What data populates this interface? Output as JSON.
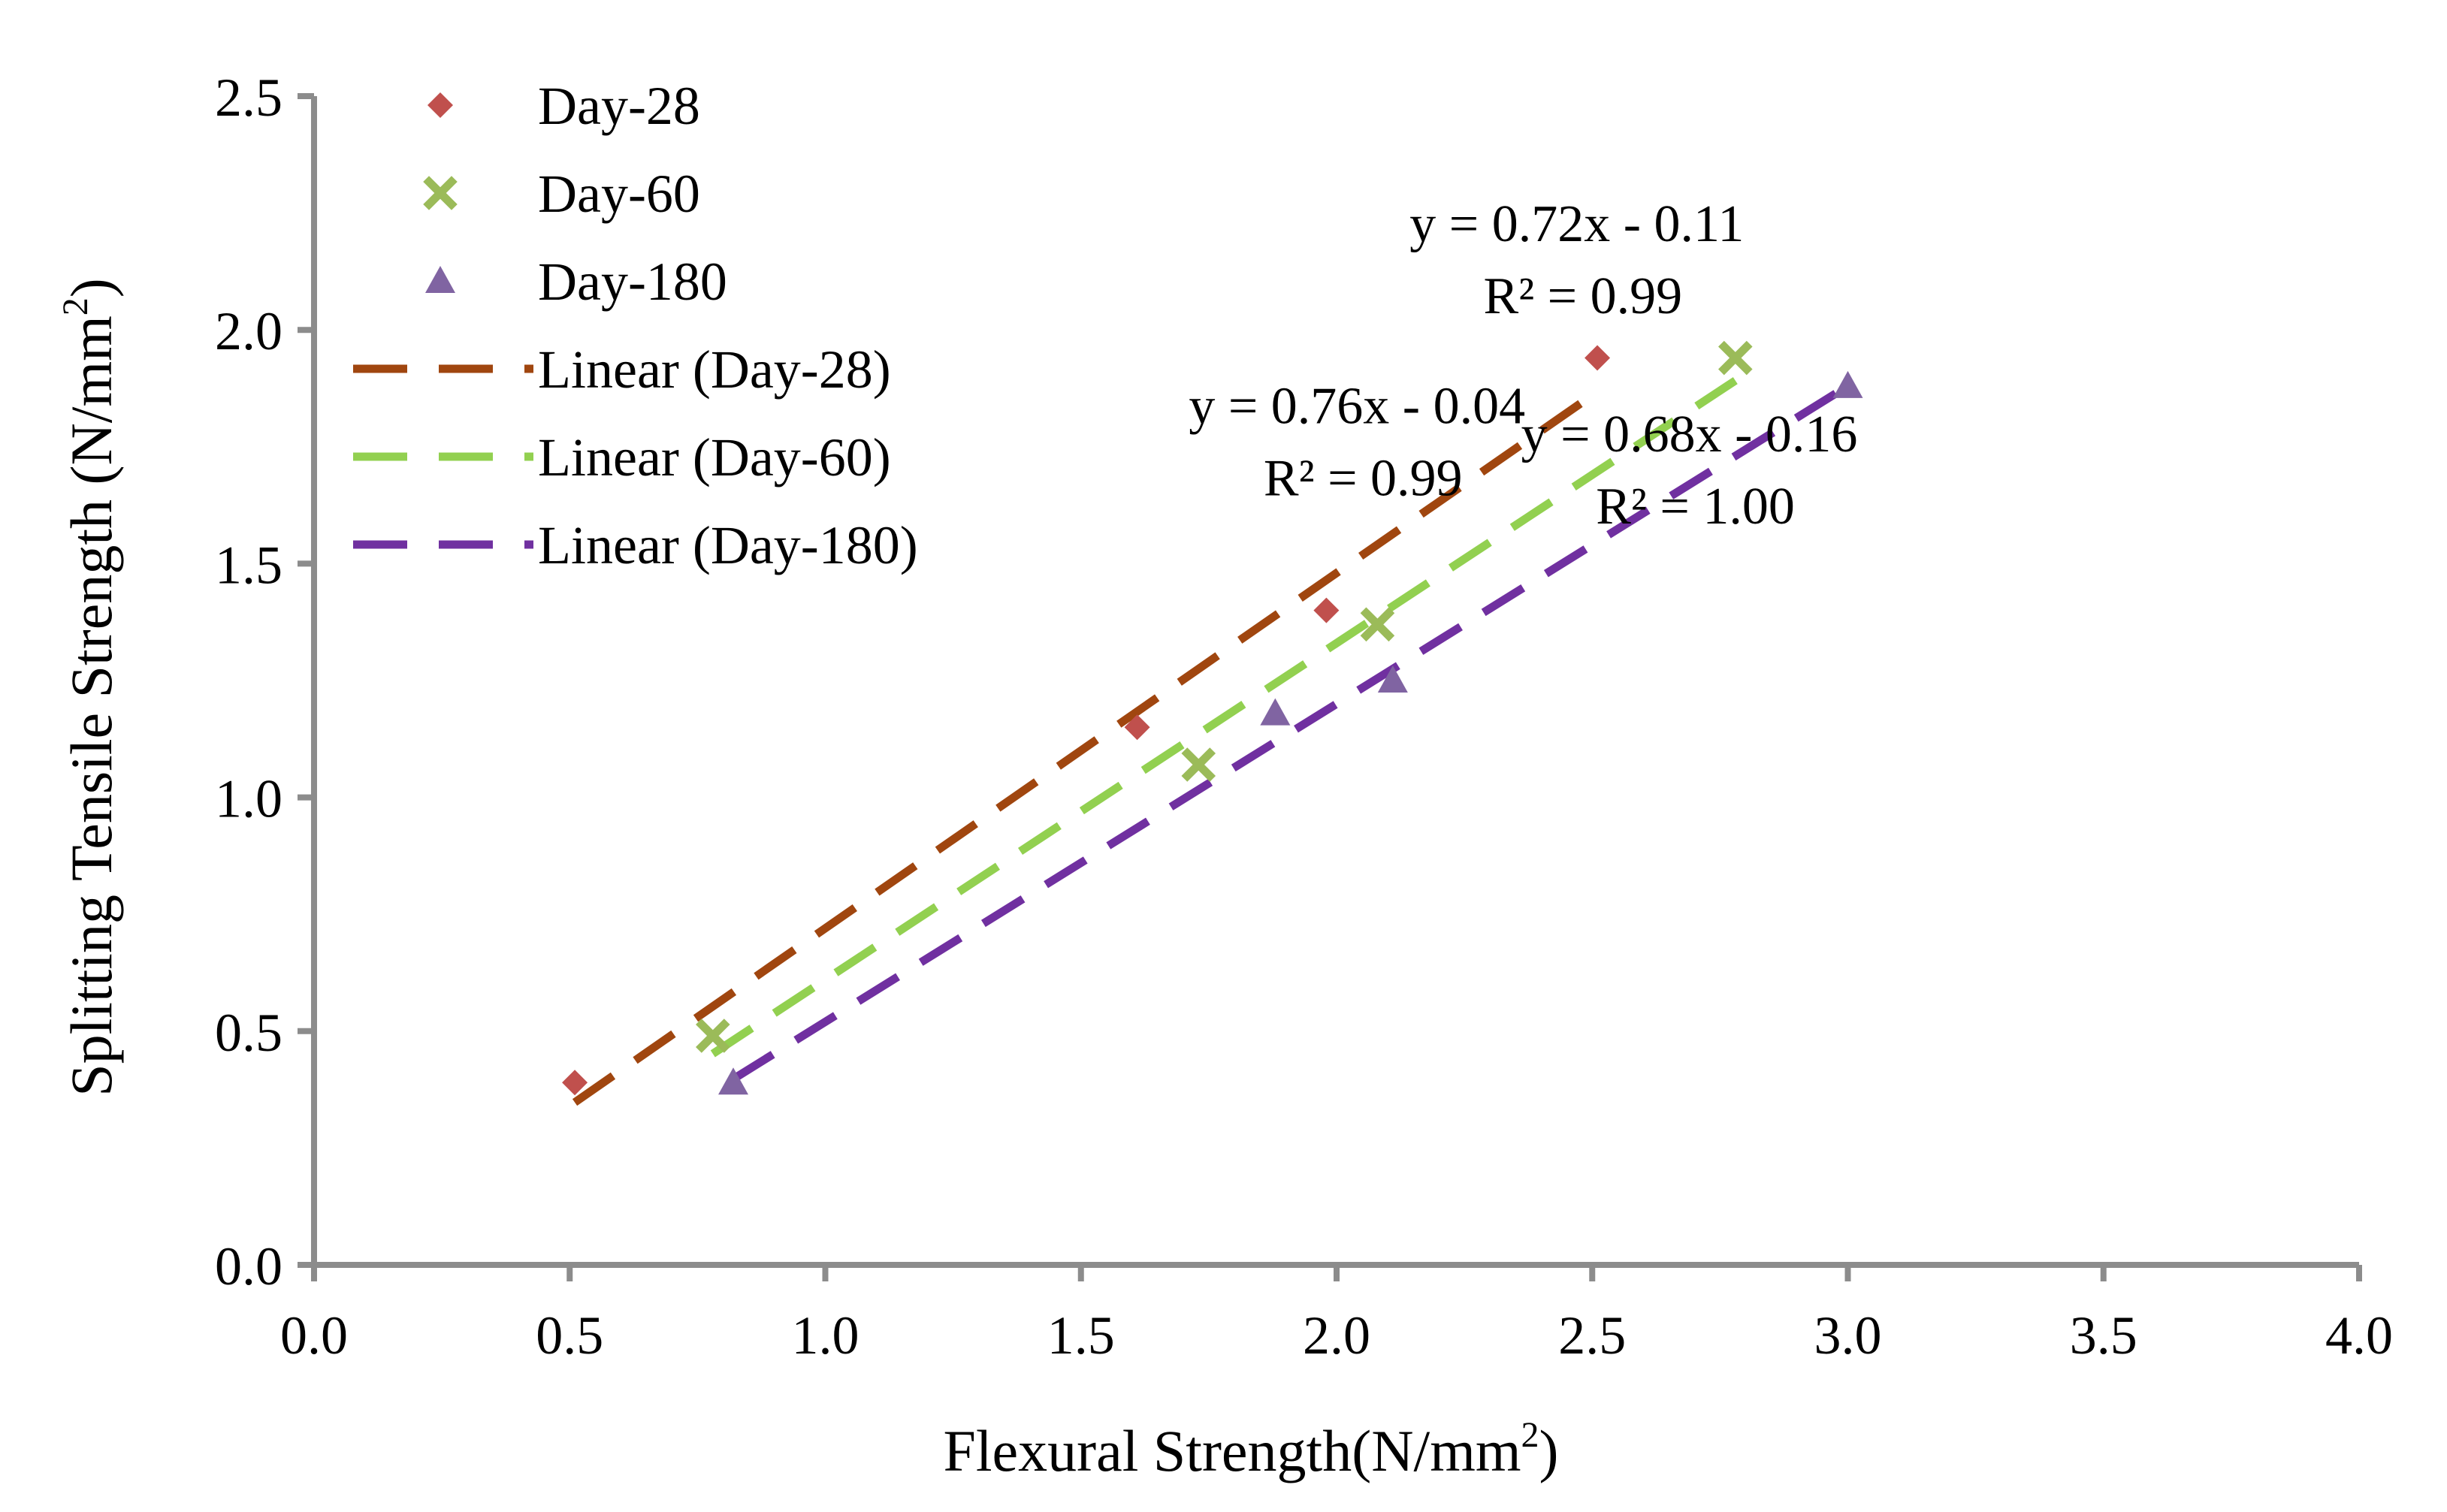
{
  "chart_data": {
    "type": "scatter",
    "title": "",
    "xlabel": "Flexural Strength(N/mm",
    "xlabel_sup": "2",
    "xlabel_tail": ")",
    "ylabel": "Splitting Tensile Strength (N/mm",
    "ylabel_sup": "2",
    "ylabel_tail": ")",
    "xlim": [
      0.0,
      4.0
    ],
    "ylim": [
      0.0,
      2.5
    ],
    "x_ticks": [
      "0.0",
      "0.5",
      "1.0",
      "1.5",
      "2.0",
      "2.5",
      "3.0",
      "3.5",
      "4.0"
    ],
    "y_ticks": [
      "0.0",
      "0.5",
      "1.0",
      "1.5",
      "2.0",
      "2.5"
    ],
    "legend_position": "top-left",
    "series": [
      {
        "name": "Day-28",
        "marker": "diamond",
        "color": "#c0504d",
        "points": [
          [
            0.51,
            0.39
          ],
          [
            1.61,
            1.15
          ],
          [
            1.98,
            1.4
          ],
          [
            2.51,
            1.94
          ]
        ],
        "trend": {
          "name": "Linear (Day-28)",
          "color": "#a0460f",
          "slope": 0.76,
          "intercept": -0.04,
          "x_range": [
            0.51,
            2.51
          ],
          "equation": "y = 0.76x  - 0.04",
          "r2": "R² = 0.99"
        }
      },
      {
        "name": "Day-60",
        "marker": "cross",
        "color": "#9bbb59",
        "points": [
          [
            0.78,
            0.49
          ],
          [
            1.73,
            1.07
          ],
          [
            2.08,
            1.37
          ],
          [
            2.78,
            1.94
          ]
        ],
        "trend": {
          "name": "Linear (Day-60)",
          "color": "#92d050",
          "slope": 0.72,
          "intercept": -0.11,
          "x_range": [
            0.78,
            2.78
          ],
          "equation": "y = 0.72x  - 0.11",
          "r2": "R² = 0.99"
        }
      },
      {
        "name": "Day-180",
        "marker": "triangle",
        "color": "#8064a2",
        "points": [
          [
            0.82,
            0.39
          ],
          [
            1.88,
            1.18
          ],
          [
            2.11,
            1.25
          ],
          [
            3.0,
            1.88
          ]
        ],
        "trend": {
          "name": "Linear (Day-180)",
          "color": "#7030a0",
          "slope": 0.68,
          "intercept": -0.16,
          "x_range": [
            0.82,
            3.0
          ],
          "equation": "y = 0.68x  - 0.16",
          "r2": "R² = 1.00"
        }
      }
    ]
  }
}
